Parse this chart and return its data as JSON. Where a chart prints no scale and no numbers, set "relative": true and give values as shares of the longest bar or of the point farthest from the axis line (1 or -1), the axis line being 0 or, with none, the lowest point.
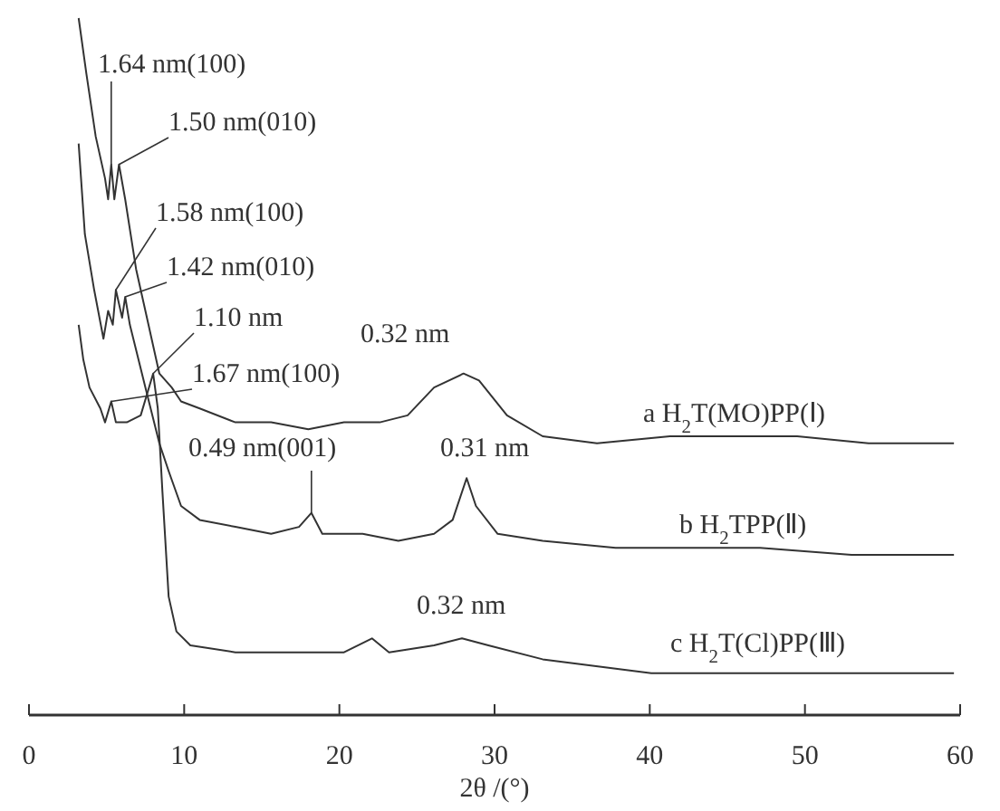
{
  "chart_data": {
    "type": "line",
    "relative": true,
    "xlabel": "2θ /(°)",
    "xlim": [
      0,
      60
    ],
    "xticks": [
      0,
      10,
      20,
      30,
      40,
      50,
      60
    ],
    "tick_labels": "x",
    "grid": false,
    "series": [
      {
        "name": "a  H$_{2}$T(MO)PP(Ⅰ)",
        "color": "#333333",
        "x": [
          3.2,
          3.7,
          4.3,
          4.9,
          5.1,
          5.3,
          5.5,
          5.8,
          6.2,
          6.9,
          7.7,
          8.4,
          9.2,
          9.8,
          11,
          13.3,
          15.6,
          18,
          20.3,
          22.6,
          24.4,
          26.1,
          28,
          29,
          30.8,
          33.1,
          36.6,
          41.3,
          44.8,
          49.5,
          54.1,
          59.6
        ],
        "values": [
          1.0,
          0.92,
          0.83,
          0.77,
          0.74,
          0.79,
          0.74,
          0.79,
          0.74,
          0.64,
          0.56,
          0.49,
          0.47,
          0.45,
          0.44,
          0.42,
          0.42,
          0.41,
          0.42,
          0.42,
          0.43,
          0.47,
          0.49,
          0.48,
          0.43,
          0.4,
          0.39,
          0.4,
          0.4,
          0.4,
          0.39,
          0.39
        ]
      },
      {
        "name": "b  H$_{2}$TPP(Ⅱ)",
        "color": "#333333",
        "x": [
          3.2,
          3.6,
          4.2,
          4.8,
          5.1,
          5.4,
          5.6,
          6.0,
          6.2,
          6.5,
          7.5,
          8.4,
          9.0,
          9.8,
          11,
          13.3,
          15.6,
          17.4,
          18.2,
          18.9,
          21.5,
          23.8,
          26.1,
          27.3,
          28.2,
          28.8,
          30.2,
          33.1,
          37.8,
          42.5,
          47.1,
          53,
          59.6
        ],
        "values": [
          0.82,
          0.69,
          0.61,
          0.54,
          0.58,
          0.56,
          0.61,
          0.57,
          0.6,
          0.56,
          0.47,
          0.39,
          0.35,
          0.3,
          0.28,
          0.27,
          0.26,
          0.27,
          0.29,
          0.26,
          0.26,
          0.25,
          0.26,
          0.28,
          0.34,
          0.3,
          0.26,
          0.25,
          0.24,
          0.24,
          0.24,
          0.23,
          0.23
        ]
      },
      {
        "name": "c  H$_{2}$T(Cl)PP(Ⅲ)",
        "color": "#333333",
        "x": [
          3.2,
          3.5,
          3.9,
          4.6,
          4.9,
          5.3,
          5.6,
          6.3,
          7.2,
          8.0,
          8.3,
          8.6,
          9.0,
          9.5,
          10.4,
          13.3,
          16.8,
          20.3,
          22.1,
          23.2,
          26.1,
          27.9,
          29.6,
          33.1,
          40.1,
          47.1,
          54.1,
          59.6
        ],
        "values": [
          0.56,
          0.51,
          0.47,
          0.44,
          0.42,
          0.45,
          0.42,
          0.42,
          0.43,
          0.49,
          0.44,
          0.32,
          0.17,
          0.12,
          0.1,
          0.09,
          0.09,
          0.09,
          0.11,
          0.09,
          0.1,
          0.11,
          0.1,
          0.08,
          0.06,
          0.06,
          0.06,
          0.06
        ]
      }
    ],
    "annotations": [
      {
        "text": "1.64 nm(100)",
        "x": 5.3,
        "y": 0.79
      },
      {
        "text": "1.50 nm(010)",
        "x": 5.8,
        "y": 0.79
      },
      {
        "text": "1.58 nm(100)",
        "x": 5.6,
        "y": 0.61
      },
      {
        "text": "1.42 nm(010)",
        "x": 6.2,
        "y": 0.6
      },
      {
        "text": "1.10 nm",
        "x": 8.0,
        "y": 0.49
      },
      {
        "text": "1.67 nm(100)",
        "x": 5.3,
        "y": 0.45
      },
      {
        "text": "0.32 nm",
        "x": 28,
        "y": 0.49
      },
      {
        "text": "0.49 nm(001)",
        "x": 18.2,
        "y": 0.29
      },
      {
        "text": "0.31 nm",
        "x": 28.2,
        "y": 0.34
      },
      {
        "text": "0.32 nm",
        "x": 27.9,
        "y": 0.11
      }
    ]
  }
}
